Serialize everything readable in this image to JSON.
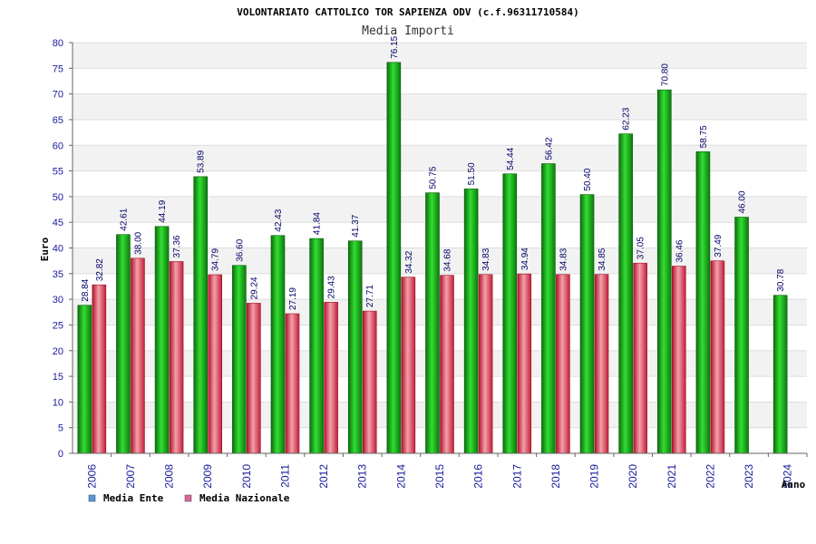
{
  "chart_data": {
    "type": "bar",
    "title": "VOLONTARIATO CATTOLICO TOR SAPIENZA ODV (c.f.96311710584)",
    "subtitle": "Media Importi",
    "xlabel": "Anno",
    "ylabel": "Euro",
    "ylim": [
      0,
      80
    ],
    "ytick_step": 5,
    "grid": true,
    "legend_position": "bottom-left",
    "categories": [
      "2006",
      "2007",
      "2008",
      "2009",
      "2010",
      "2011",
      "2012",
      "2013",
      "2014",
      "2015",
      "2016",
      "2017",
      "2018",
      "2019",
      "2020",
      "2021",
      "2022",
      "2023",
      "2024"
    ],
    "series": [
      {
        "name": "Media Ente",
        "color": "#22bb22",
        "legend_color": "#5599dd",
        "values": [
          28.84,
          42.61,
          44.19,
          53.89,
          36.6,
          42.43,
          41.84,
          41.37,
          76.15,
          50.75,
          51.5,
          54.44,
          56.42,
          50.4,
          62.23,
          70.8,
          58.75,
          46.0,
          30.78
        ],
        "labels": [
          "28.84",
          "42.61",
          "44.19",
          "53.89",
          "36.60",
          "42.43",
          "41.84",
          "41.37",
          "76.15",
          "50.75",
          "51.50",
          "54.44",
          "56.42",
          "50.40",
          "62.23",
          "70.80",
          "58.75",
          "46.00",
          "30.78"
        ]
      },
      {
        "name": "Media Nazionale",
        "color": "#e0485a",
        "legend_color": "#dd6699",
        "values": [
          32.82,
          38.0,
          37.36,
          34.79,
          29.24,
          27.19,
          29.43,
          27.71,
          34.32,
          34.68,
          34.83,
          34.94,
          34.83,
          34.85,
          37.05,
          36.46,
          37.49,
          null,
          null
        ],
        "labels": [
          "32.82",
          "38.00",
          "37.36",
          "34.79",
          "29.24",
          "27.19",
          "29.43",
          "27.71",
          "34.32",
          "34.68",
          "34.83",
          "34.94",
          "34.83",
          "34.85",
          "37.05",
          "36.46",
          "37.49",
          "",
          ""
        ]
      }
    ]
  }
}
